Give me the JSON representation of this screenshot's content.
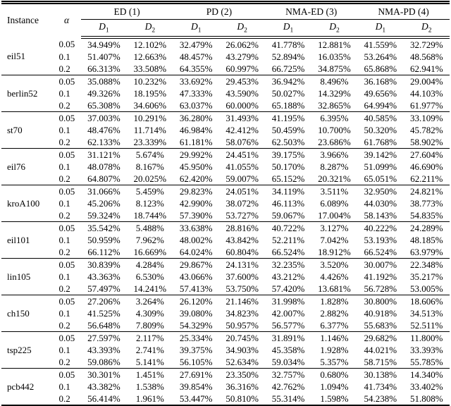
{
  "table": {
    "header": {
      "instance": "Instance",
      "alpha": "α",
      "groups": [
        "ED (1)",
        "PD (2)",
        "NMA-ED (3)",
        "NMA-PD (4)"
      ],
      "subcols": [
        {
          "base": "D",
          "sub": "1"
        },
        {
          "base": "D",
          "sub": "2"
        }
      ]
    },
    "rows": [
      {
        "instance": "eil51",
        "entries": [
          {
            "alpha": "0.05",
            "values": [
              "34.949%",
              "12.102%",
              "32.479%",
              "26.062%",
              "41.778%",
              "12.881%",
              "41.559%",
              "32.729%"
            ]
          },
          {
            "alpha": "0.1",
            "values": [
              "51.407%",
              "12.663%",
              "48.457%",
              "43.279%",
              "52.894%",
              "16.035%",
              "53.264%",
              "48.568%"
            ]
          },
          {
            "alpha": "0.2",
            "values": [
              "66.313%",
              "33.508%",
              "64.355%",
              "60.997%",
              "66.725%",
              "34.875%",
              "65.868%",
              "62.941%"
            ]
          }
        ]
      },
      {
        "instance": "berlin52",
        "entries": [
          {
            "alpha": "0.05",
            "values": [
              "35.088%",
              "10.232%",
              "33.692%",
              "29.453%",
              "36.942%",
              "8.496%",
              "36.168%",
              "29.004%"
            ]
          },
          {
            "alpha": "0.1",
            "values": [
              "49.326%",
              "18.195%",
              "47.333%",
              "43.590%",
              "50.027%",
              "14.329%",
              "49.656%",
              "44.103%"
            ]
          },
          {
            "alpha": "0.2",
            "values": [
              "65.308%",
              "34.606%",
              "63.037%",
              "60.000%",
              "65.188%",
              "32.865%",
              "64.994%",
              "61.977%"
            ]
          }
        ]
      },
      {
        "instance": "st70",
        "entries": [
          {
            "alpha": "0.05",
            "values": [
              "37.003%",
              "10.291%",
              "36.280%",
              "31.493%",
              "41.195%",
              "6.395%",
              "40.585%",
              "33.109%"
            ]
          },
          {
            "alpha": "0.1",
            "values": [
              "48.476%",
              "11.714%",
              "46.984%",
              "42.412%",
              "50.459%",
              "10.700%",
              "50.320%",
              "45.782%"
            ]
          },
          {
            "alpha": "0.2",
            "values": [
              "62.133%",
              "23.339%",
              "61.181%",
              "58.076%",
              "62.503%",
              "23.686%",
              "61.768%",
              "58.902%"
            ]
          }
        ]
      },
      {
        "instance": "eil76",
        "entries": [
          {
            "alpha": "0.05",
            "values": [
              "31.121%",
              "5.674%",
              "29.992%",
              "24.451%",
              "39.175%",
              "3.966%",
              "39.142%",
              "27.604%"
            ]
          },
          {
            "alpha": "0.1",
            "values": [
              "48.078%",
              "8.167%",
              "45.950%",
              "41.055%",
              "50.170%",
              "8.287%",
              "51.099%",
              "46.690%"
            ]
          },
          {
            "alpha": "0.2",
            "values": [
              "64.807%",
              "20.025%",
              "62.420%",
              "59.007%",
              "65.152%",
              "20.321%",
              "65.051%",
              "62.211%"
            ]
          }
        ]
      },
      {
        "instance": "kroA100",
        "entries": [
          {
            "alpha": "0.05",
            "values": [
              "31.066%",
              "5.459%",
              "29.823%",
              "24.051%",
              "34.119%",
              "3.511%",
              "32.950%",
              "24.821%"
            ]
          },
          {
            "alpha": "0.1",
            "values": [
              "45.206%",
              "8.123%",
              "42.990%",
              "38.072%",
              "46.113%",
              "6.089%",
              "44.030%",
              "38.773%"
            ]
          },
          {
            "alpha": "0.2",
            "values": [
              "59.324%",
              "18.744%",
              "57.390%",
              "53.727%",
              "59.067%",
              "17.004%",
              "58.143%",
              "54.835%"
            ]
          }
        ]
      },
      {
        "instance": "eil101",
        "entries": [
          {
            "alpha": "0.05",
            "values": [
              "35.542%",
              "5.488%",
              "33.638%",
              "28.816%",
              "40.722%",
              "3.127%",
              "40.222%",
              "24.289%"
            ]
          },
          {
            "alpha": "0.1",
            "values": [
              "50.959%",
              "7.962%",
              "48.002%",
              "43.842%",
              "52.211%",
              "7.042%",
              "53.193%",
              "48.185%"
            ]
          },
          {
            "alpha": "0.2",
            "values": [
              "66.112%",
              "16.669%",
              "64.024%",
              "60.804%",
              "66.524%",
              "18.912%",
              "66.524%",
              "63.979%"
            ]
          }
        ]
      },
      {
        "instance": "lin105",
        "entries": [
          {
            "alpha": "0.05",
            "values": [
              "30.839%",
              "4.284%",
              "29.867%",
              "24.131%",
              "32.235%",
              "3.520%",
              "30.007%",
              "22.348%"
            ]
          },
          {
            "alpha": "0.1",
            "values": [
              "43.363%",
              "6.530%",
              "43.066%",
              "37.600%",
              "43.212%",
              "4.426%",
              "41.192%",
              "35.217%"
            ]
          },
          {
            "alpha": "0.2",
            "values": [
              "57.497%",
              "14.241%",
              "57.413%",
              "53.750%",
              "57.420%",
              "13.681%",
              "56.728%",
              "53.005%"
            ]
          }
        ]
      },
      {
        "instance": "ch150",
        "entries": [
          {
            "alpha": "0.05",
            "values": [
              "27.206%",
              "3.264%",
              "26.120%",
              "21.146%",
              "31.998%",
              "1.828%",
              "30.800%",
              "18.606%"
            ]
          },
          {
            "alpha": "0.1",
            "values": [
              "41.525%",
              "4.309%",
              "39.080%",
              "34.823%",
              "42.007%",
              "2.882%",
              "40.918%",
              "34.513%"
            ]
          },
          {
            "alpha": "0.2",
            "values": [
              "56.648%",
              "7.809%",
              "54.329%",
              "50.957%",
              "56.577%",
              "6.377%",
              "55.683%",
              "52.511%"
            ]
          }
        ]
      },
      {
        "instance": "tsp225",
        "entries": [
          {
            "alpha": "0.05",
            "values": [
              "27.597%",
              "2.117%",
              "25.334%",
              "20.745%",
              "31.891%",
              "1.146%",
              "29.682%",
              "11.800%"
            ]
          },
          {
            "alpha": "0.1",
            "values": [
              "43.393%",
              "2.741%",
              "39.375%",
              "34.903%",
              "45.358%",
              "1.928%",
              "44.021%",
              "33.393%"
            ]
          },
          {
            "alpha": "0.2",
            "values": [
              "59.086%",
              "5.141%",
              "56.105%",
              "52.634%",
              "59.034%",
              "5.357%",
              "58.715%",
              "55.785%"
            ]
          }
        ]
      },
      {
        "instance": "pcb442",
        "entries": [
          {
            "alpha": "0.05",
            "values": [
              "30.301%",
              "1.451%",
              "27.691%",
              "23.350%",
              "32.757%",
              "0.680%",
              "30.138%",
              "14.340%"
            ]
          },
          {
            "alpha": "0.1",
            "values": [
              "43.382%",
              "1.538%",
              "39.854%",
              "36.316%",
              "42.762%",
              "1.094%",
              "41.734%",
              "33.402%"
            ]
          },
          {
            "alpha": "0.2",
            "values": [
              "56.414%",
              "1.961%",
              "53.447%",
              "50.810%",
              "55.314%",
              "1.598%",
              "54.238%",
              "51.808%"
            ]
          }
        ]
      }
    ]
  }
}
